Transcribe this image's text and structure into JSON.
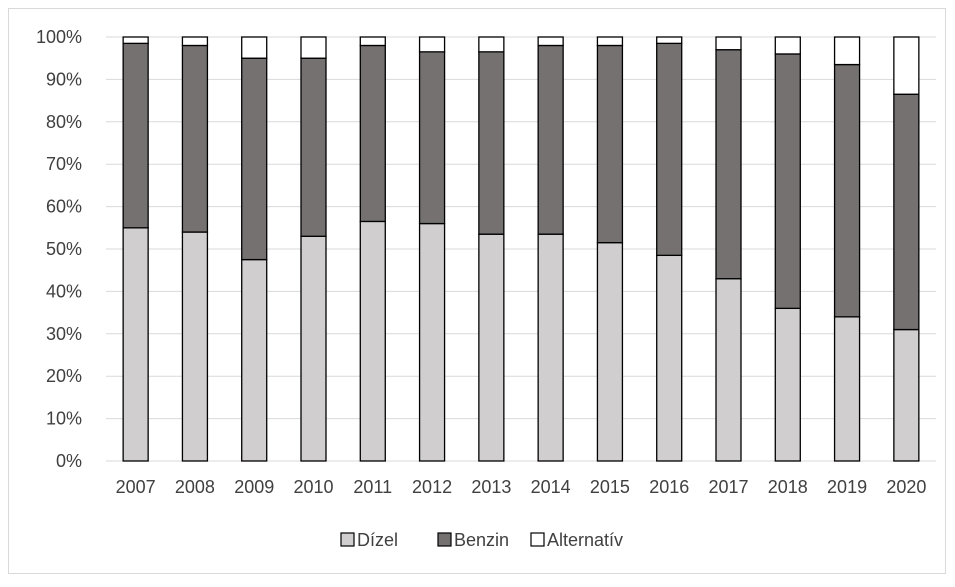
{
  "chart_data": {
    "type": "bar",
    "stacked": true,
    "percent": true,
    "categories": [
      "2007",
      "2008",
      "2009",
      "2010",
      "2011",
      "2012",
      "2013",
      "2014",
      "2015",
      "2016",
      "2017",
      "2018",
      "2019",
      "2020"
    ],
    "series": [
      {
        "name": "Dízel",
        "color": "#d0cece",
        "values": [
          55,
          54,
          47.5,
          53,
          56.5,
          56,
          53.5,
          53.5,
          51.5,
          48.5,
          43,
          36,
          34,
          31
        ]
      },
      {
        "name": "Benzin",
        "color": "#767171",
        "values": [
          43.5,
          44,
          47.5,
          42,
          41.5,
          40.5,
          43,
          44.5,
          46.5,
          50,
          54,
          60,
          59.5,
          55.5
        ]
      },
      {
        "name": "Alternatív",
        "color": "#ffffff",
        "values": [
          1.5,
          2,
          5,
          5,
          2,
          3.5,
          3.5,
          2,
          2,
          1.5,
          3,
          4,
          6.5,
          13.5
        ]
      }
    ],
    "ylim": [
      0,
      100
    ],
    "yticks": [
      "0%",
      "10%",
      "20%",
      "30%",
      "40%",
      "50%",
      "60%",
      "70%",
      "80%",
      "90%",
      "100%"
    ],
    "grid": true,
    "legend": "bottom"
  }
}
